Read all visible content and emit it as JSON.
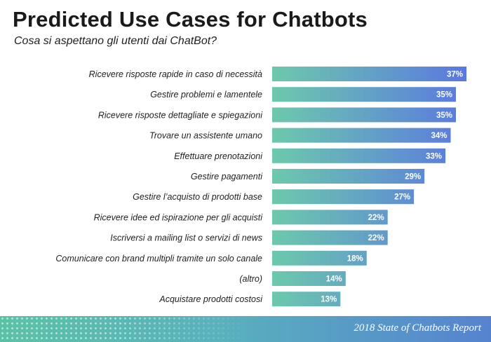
{
  "header": {
    "title": "Predicted Use Cases for Chatbots",
    "subtitle": "Cosa si aspettano gli utenti dai ChatBot?"
  },
  "footer": {
    "text": "2018 State of Chatbots Report"
  },
  "colors": {
    "bar_start": "#6cc9ac",
    "bar_end": "#5a78e0",
    "footer_start": "#5cc2a6",
    "footer_end": "#5683cf"
  },
  "chart_data": {
    "type": "bar",
    "orientation": "horizontal",
    "title": "Predicted Use Cases for Chatbots",
    "subtitle": "Cosa si aspettano gli utenti dai ChatBot?",
    "categories": [
      "Ricevere risposte rapide in caso di necessità",
      "Gestire problemi e lamentele",
      "Ricevere risposte dettagliate e spiegazioni",
      "Trovare un assistente umano",
      "Effettuare prenotazioni",
      "Gestire pagamenti",
      "Gestire l’acquisto di prodotti base",
      "Ricevere idee ed ispirazione per gli acquisti",
      "Iscriversi a mailing list o servizi di news",
      "Comunicare con brand multipli tramite un solo canale",
      "(altro)",
      "Acquistare prodotti costosi"
    ],
    "values": [
      37,
      35,
      35,
      34,
      33,
      29,
      27,
      22,
      22,
      18,
      14,
      13
    ],
    "value_labels": [
      "37%",
      "35%",
      "35%",
      "34%",
      "33%",
      "29%",
      "27%",
      "22%",
      "22%",
      "18%",
      "14%",
      "13%"
    ],
    "unit": "%",
    "xlim": [
      0,
      37
    ],
    "grid": false,
    "legend": "none"
  }
}
